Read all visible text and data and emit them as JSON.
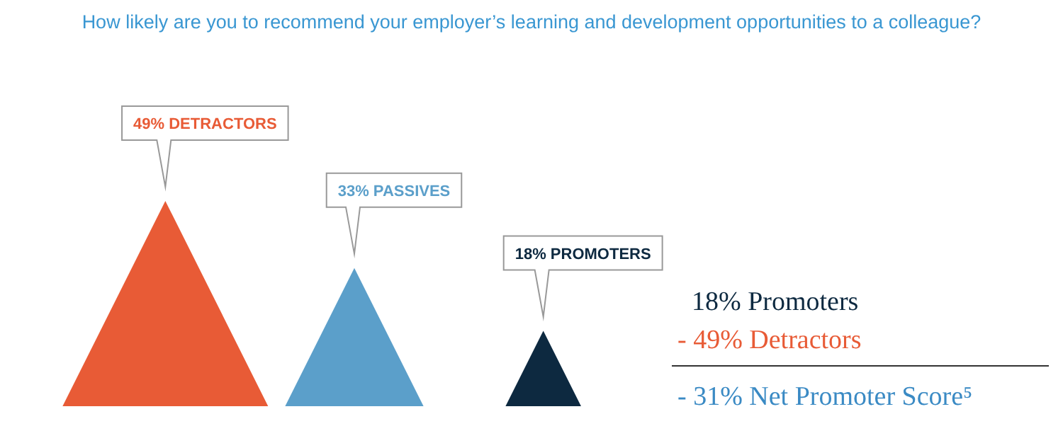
{
  "chart_data": {
    "type": "other",
    "title": "How likely are you to recommend your employer’s learning and development opportunities to a colleague?",
    "categories": [
      null,
      null,
      null
    ],
    "values": [
      49,
      33,
      18
    ],
    "colors": [
      "#e85b36",
      "#5b9fca",
      "#0d2940"
    ],
    "value_labels": [
      "49% DETRACTORS",
      "33% PASSIVES",
      "18% PROMOTERS"
    ],
    "annotations": [
      "18% Promoters",
      "- 49% Detractors",
      "- 31%  Net Promoter Score⁵"
    ]
  }
}
